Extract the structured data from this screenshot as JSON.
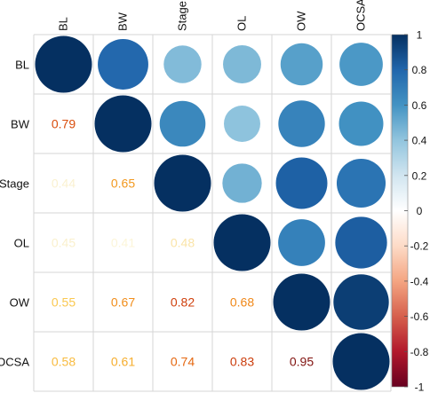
{
  "chart_data": {
    "type": "heatmap",
    "subtype": "correlation-matrix",
    "variables": [
      "BL",
      "BW",
      "Stage",
      "OL",
      "OW",
      "OCSA"
    ],
    "matrix": [
      [
        1.0,
        0.79,
        0.44,
        0.45,
        0.55,
        0.58
      ],
      [
        0.79,
        1.0,
        0.65,
        0.41,
        0.67,
        0.61
      ],
      [
        0.44,
        0.65,
        1.0,
        0.48,
        0.82,
        0.74
      ],
      [
        0.45,
        0.41,
        0.48,
        1.0,
        0.68,
        0.83
      ],
      [
        0.55,
        0.67,
        0.82,
        0.68,
        1.0,
        0.95
      ],
      [
        0.58,
        0.61,
        0.74,
        0.83,
        0.95,
        1.0
      ]
    ],
    "lower_display": "number",
    "upper_display": "circle",
    "diagonal_display": "circle",
    "legend": {
      "position": "right",
      "range": [
        -1,
        1
      ],
      "ticks": [
        "1",
        "0.8",
        "0.6",
        "0.4",
        "0.2",
        "0",
        "-0.2",
        "-0.4",
        "-0.6",
        "-0.8",
        "-1"
      ],
      "colors": [
        "#67001F",
        "#B2182B",
        "#D6604D",
        "#F4A582",
        "#FDDBC7",
        "#FFFFFF",
        "#D1E5F0",
        "#92C5DE",
        "#4393C3",
        "#2166AC",
        "#053061"
      ]
    }
  }
}
